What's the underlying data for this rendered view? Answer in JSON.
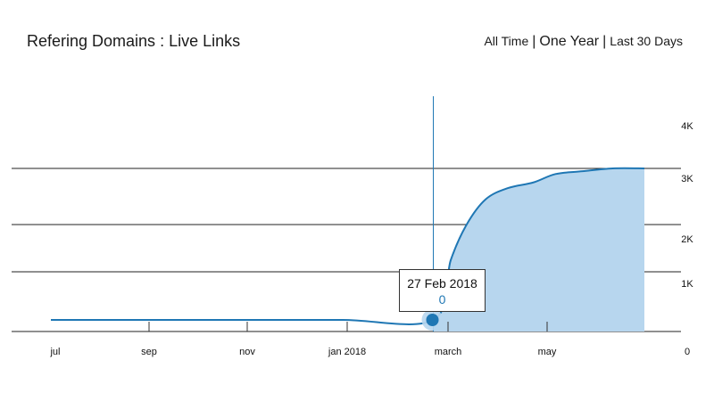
{
  "header": {
    "title": "Refering Domains : Live Links",
    "ranges": [
      {
        "label": "All Time",
        "active": false
      },
      {
        "label": "One Year",
        "active": true
      },
      {
        "label": "Last 30 Days",
        "active": false
      }
    ],
    "separator": "|"
  },
  "tooltip": {
    "date": "27 Feb 2018",
    "value": "0"
  },
  "colors": {
    "line": "#1f77b4",
    "fill": "#b7d6ee",
    "grid": "#222222"
  },
  "chart_data": {
    "type": "area",
    "title": "Refering Domains : Live Links",
    "xlabel": "",
    "ylabel": "",
    "x_ticks": [
      "jul",
      "sep",
      "nov",
      "jan 2018",
      "march",
      "may"
    ],
    "y_ticks": [
      "0",
      "1K",
      "2K",
      "3K",
      "4K"
    ],
    "ylim": [
      0,
      4000
    ],
    "grid": "horizontal",
    "x": [
      "2017-07-01",
      "2017-09-01",
      "2017-11-01",
      "2018-01-01",
      "2018-02-27",
      "2018-03-10",
      "2018-03-20",
      "2018-04-01",
      "2018-04-15",
      "2018-05-01",
      "2018-05-15",
      "2018-06-01",
      "2018-06-20",
      "2018-07-10"
    ],
    "values": [
      0,
      0,
      0,
      0,
      0,
      1250,
      2000,
      2450,
      2650,
      2750,
      2900,
      2950,
      3000,
      3000
    ],
    "highlight": {
      "x": "2018-02-27",
      "y": 0
    }
  }
}
